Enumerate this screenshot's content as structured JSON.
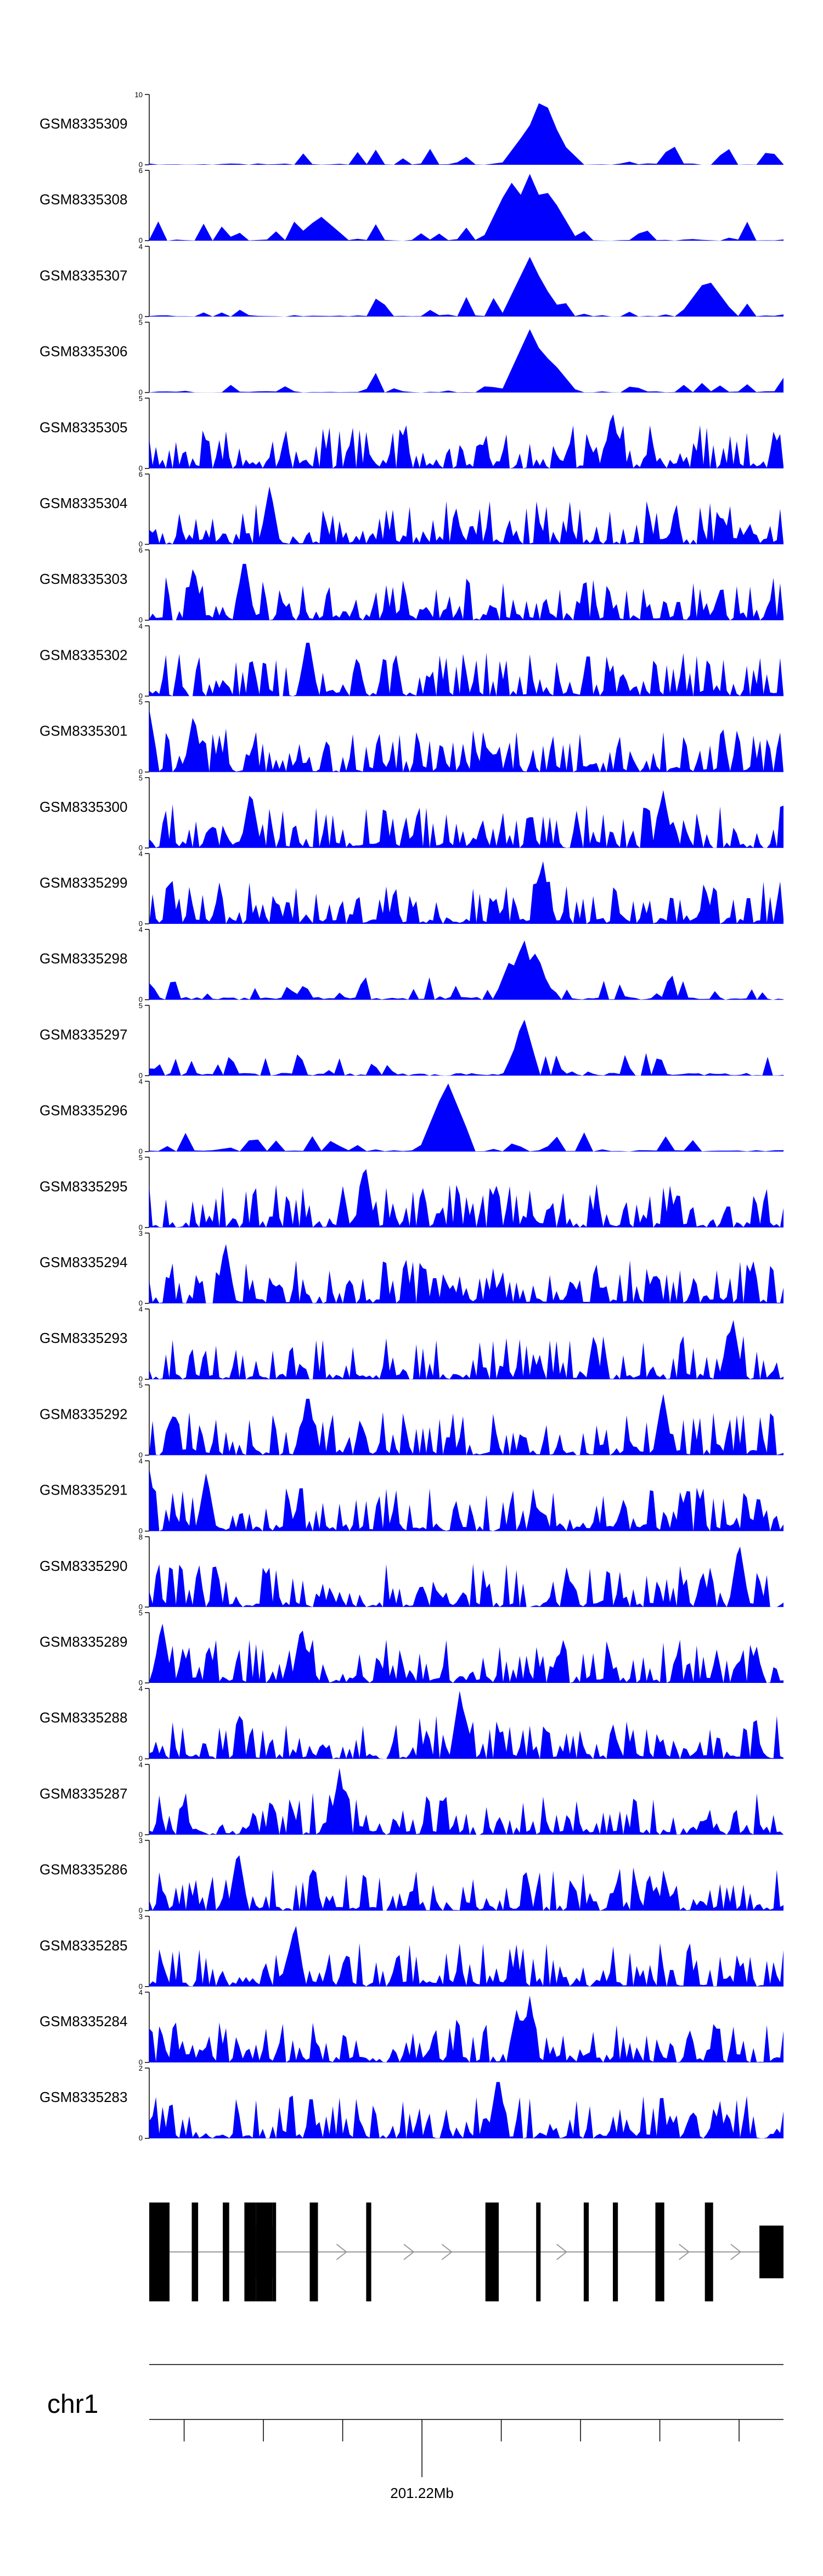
{
  "chart_data": {
    "type": "area",
    "chromosome": "chr1",
    "x_axis_label": "201.22Mb",
    "colors": {
      "signal": "#0000ff",
      "gene": "#000000",
      "intron": "#9a9a9a",
      "axis": "#000000"
    },
    "tracks": [
      {
        "name": "GSM8335309",
        "ymax": "10",
        "ymin": "0",
        "max": 10,
        "seed": 309,
        "density": "sparse",
        "peaks": [
          [
            0.62,
            1.0
          ],
          [
            0.6,
            0.55
          ],
          [
            0.64,
            0.4
          ]
        ]
      },
      {
        "name": "GSM8335308",
        "ymax": "6",
        "ymin": "0",
        "max": 6,
        "seed": 308,
        "density": "sparse",
        "peaks": [
          [
            0.57,
            0.85
          ],
          [
            0.6,
            0.95
          ],
          [
            0.63,
            0.7
          ],
          [
            0.27,
            0.35
          ]
        ]
      },
      {
        "name": "GSM8335307",
        "ymax": "4",
        "ymin": "0",
        "max": 4,
        "seed": 307,
        "density": "sparse",
        "peaks": [
          [
            0.6,
            0.85
          ],
          [
            0.61,
            0.6
          ],
          [
            0.88,
            0.55
          ]
        ]
      },
      {
        "name": "GSM8335306",
        "ymax": "5",
        "ymin": "0",
        "max": 5,
        "seed": 306,
        "density": "sparse",
        "peaks": [
          [
            0.6,
            0.9
          ],
          [
            0.61,
            0.7
          ],
          [
            0.63,
            0.5
          ]
        ]
      },
      {
        "name": "GSM8335305",
        "ymax": "5",
        "ymin": "0",
        "max": 5,
        "seed": 305,
        "density": "dense",
        "peaks": [
          [
            0.73,
            0.85
          ]
        ]
      },
      {
        "name": "GSM8335304",
        "ymax": "6",
        "ymin": "0",
        "max": 6,
        "seed": 304,
        "density": "dense",
        "peaks": [
          [
            0.19,
            0.85
          ]
        ]
      },
      {
        "name": "GSM8335303",
        "ymax": "6",
        "ymin": "0",
        "max": 6,
        "seed": 303,
        "density": "dense",
        "peaks": [
          [
            0.15,
            0.95
          ],
          [
            0.07,
            0.8
          ]
        ]
      },
      {
        "name": "GSM8335302",
        "ymax": "4",
        "ymin": "0",
        "max": 4,
        "seed": 302,
        "density": "dense",
        "peaks": [
          [
            0.25,
            0.9
          ]
        ]
      },
      {
        "name": "GSM8335301",
        "ymax": "5",
        "ymin": "0",
        "max": 5,
        "seed": 301,
        "density": "dense",
        "peaks": [
          [
            0.0,
            0.9
          ],
          [
            0.07,
            0.85
          ]
        ]
      },
      {
        "name": "GSM8335300",
        "ymax": "5",
        "ymin": "0",
        "max": 5,
        "seed": 300,
        "density": "dense",
        "peaks": [
          [
            0.16,
            0.85
          ],
          [
            0.81,
            0.85
          ]
        ]
      },
      {
        "name": "GSM8335299",
        "ymax": "4",
        "ymin": "0",
        "max": 4,
        "seed": 299,
        "density": "dense",
        "peaks": [
          [
            0.62,
            0.95
          ]
        ]
      },
      {
        "name": "GSM8335298",
        "ymax": "4",
        "ymin": "0",
        "max": 4,
        "seed": 298,
        "density": "medium",
        "peaks": [
          [
            0.59,
            0.9
          ],
          [
            0.61,
            0.7
          ],
          [
            0.57,
            0.6
          ]
        ]
      },
      {
        "name": "GSM8335297",
        "ymax": "5",
        "ymin": "0",
        "max": 5,
        "seed": 297,
        "density": "medium",
        "peaks": [
          [
            0.59,
            0.85
          ]
        ]
      },
      {
        "name": "GSM8335296",
        "ymax": "4",
        "ymin": "0",
        "max": 4,
        "seed": 296,
        "density": "sparse",
        "peaks": [
          [
            0.47,
            1.0
          ]
        ]
      },
      {
        "name": "GSM8335295",
        "ymax": "5",
        "ymin": "0",
        "max": 5,
        "seed": 295,
        "density": "dense",
        "peaks": [
          [
            0.34,
            0.95
          ]
        ]
      },
      {
        "name": "GSM8335294",
        "ymax": "3",
        "ymin": "0",
        "max": 3,
        "seed": 294,
        "density": "dense",
        "peaks": [
          [
            0.12,
            0.9
          ]
        ]
      },
      {
        "name": "GSM8335293",
        "ymax": "4",
        "ymin": "0",
        "max": 4,
        "seed": 293,
        "density": "dense",
        "peaks": [
          [
            0.92,
            0.9
          ]
        ]
      },
      {
        "name": "GSM8335292",
        "ymax": "5",
        "ymin": "0",
        "max": 5,
        "seed": 292,
        "density": "dense",
        "peaks": [
          [
            0.25,
            0.95
          ],
          [
            0.81,
            0.9
          ]
        ]
      },
      {
        "name": "GSM8335291",
        "ymax": "4",
        "ymin": "0",
        "max": 4,
        "seed": 291,
        "density": "dense",
        "peaks": [
          [
            0.0,
            0.9
          ],
          [
            0.09,
            0.85
          ]
        ]
      },
      {
        "name": "GSM8335290",
        "ymax": "8",
        "ymin": "0",
        "max": 8,
        "seed": 290,
        "density": "dense",
        "peaks": [
          [
            0.93,
            0.95
          ]
        ]
      },
      {
        "name": "GSM8335289",
        "ymax": "5",
        "ymin": "0",
        "max": 5,
        "seed": 289,
        "density": "dense",
        "peaks": [
          [
            0.02,
            0.9
          ],
          [
            0.24,
            0.85
          ]
        ]
      },
      {
        "name": "GSM8335288",
        "ymax": "4",
        "ymin": "0",
        "max": 4,
        "seed": 288,
        "density": "dense",
        "peaks": [
          [
            0.49,
            1.0
          ]
        ]
      },
      {
        "name": "GSM8335287",
        "ymax": "4",
        "ymin": "0",
        "max": 4,
        "seed": 287,
        "density": "dense",
        "peaks": [
          [
            0.3,
            0.95
          ]
        ]
      },
      {
        "name": "GSM8335286",
        "ymax": "3",
        "ymin": "0",
        "max": 3,
        "seed": 286,
        "density": "dense",
        "peaks": [
          [
            0.14,
            0.9
          ]
        ]
      },
      {
        "name": "GSM8335285",
        "ymax": "3",
        "ymin": "0",
        "max": 3,
        "seed": 285,
        "density": "dense",
        "peaks": [
          [
            0.23,
            0.95
          ]
        ]
      },
      {
        "name": "GSM8335284",
        "ymax": "4",
        "ymin": "0",
        "max": 4,
        "seed": 284,
        "density": "dense",
        "peaks": [
          [
            0.6,
            0.95
          ],
          [
            0.58,
            0.8
          ]
        ]
      },
      {
        "name": "GSM8335283",
        "ymax": "2",
        "ymin": "0",
        "max": 2,
        "seed": 283,
        "density": "dense",
        "peaks": [
          [
            0.55,
            0.95
          ]
        ]
      }
    ],
    "gene_model": {
      "strand": "+",
      "exons": [
        {
          "start": 0.0,
          "end": 0.032,
          "coding": true
        },
        {
          "start": 0.067,
          "end": 0.077,
          "coding": true
        },
        {
          "start": 0.116,
          "end": 0.126,
          "coding": true
        },
        {
          "start": 0.15,
          "end": 0.168,
          "coding": true
        },
        {
          "start": 0.168,
          "end": 0.194,
          "coding": true
        },
        {
          "start": 0.194,
          "end": 0.2,
          "coding": true
        },
        {
          "start": 0.253,
          "end": 0.266,
          "coding": true
        },
        {
          "start": 0.342,
          "end": 0.35,
          "coding": true
        },
        {
          "start": 0.53,
          "end": 0.551,
          "coding": true
        },
        {
          "start": 0.61,
          "end": 0.617,
          "coding": true
        },
        {
          "start": 0.685,
          "end": 0.693,
          "coding": true
        },
        {
          "start": 0.731,
          "end": 0.739,
          "coding": true
        },
        {
          "start": 0.798,
          "end": 0.812,
          "coding": true
        },
        {
          "start": 0.876,
          "end": 0.889,
          "coding": true
        },
        {
          "start": 0.962,
          "end": 1.0,
          "coding": false
        }
      ]
    },
    "genome_axis": {
      "ticks": [
        0.055,
        0.18,
        0.305,
        0.43,
        0.555,
        0.68,
        0.805,
        0.93
      ],
      "labeled_tick": 0.43
    }
  }
}
